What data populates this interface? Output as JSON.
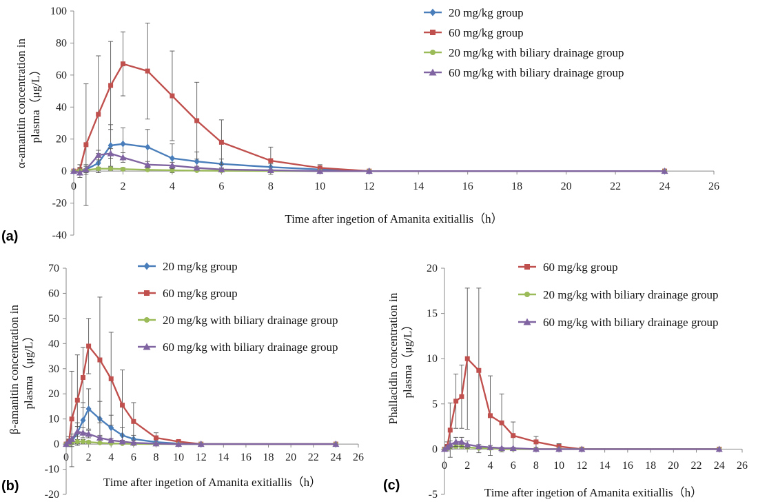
{
  "chart_data": [
    {
      "panel": "(a)",
      "type": "line",
      "xlabel": "Time after ingetion of Amanita exitiallis（h）",
      "ylabel_lines": [
        "α-amanitin concentration in",
        "plasma（μg/L）"
      ],
      "xlim": [
        0,
        26
      ],
      "ylim": [
        -40,
        100
      ],
      "x_ticks": [
        0,
        2,
        4,
        6,
        8,
        10,
        12,
        14,
        16,
        18,
        20,
        22,
        24,
        26
      ],
      "y_ticks": [
        -40,
        -20,
        0,
        20,
        40,
        60,
        80,
        100
      ],
      "legend_position": "top-center",
      "series": [
        {
          "name": "20 mg/kg group",
          "color": "#4a7ebb",
          "marker": "diamond",
          "x": [
            0,
            0.25,
            0.5,
            1,
            1.5,
            2,
            3,
            4,
            5,
            6,
            8,
            10,
            12,
            24
          ],
          "y": [
            0,
            0.5,
            1,
            5,
            16,
            17,
            15,
            8,
            6,
            4.5,
            2.5,
            1,
            0,
            0
          ],
          "err": [
            0,
            1,
            2,
            6,
            13,
            10,
            11,
            9,
            6,
            3,
            2,
            1,
            0,
            0
          ]
        },
        {
          "name": "60 mg/kg group",
          "color": "#c0504d",
          "marker": "square",
          "x": [
            0,
            0.25,
            0.5,
            1,
            1.5,
            2,
            3,
            4,
            5,
            6,
            8,
            10,
            12,
            24
          ],
          "y": [
            0,
            1,
            16.5,
            35.5,
            53.5,
            67,
            62.5,
            47,
            31.5,
            18,
            6.5,
            2,
            0,
            0
          ],
          "err": [
            0,
            3,
            38,
            36.5,
            27.5,
            20,
            30,
            28,
            24,
            14,
            8.5,
            2,
            0,
            0
          ]
        },
        {
          "name": "20 mg/kg with biliary drainage group",
          "color": "#9bbb59",
          "marker": "circle",
          "x": [
            0,
            0.25,
            0.5,
            1,
            1.5,
            2,
            3,
            4,
            5,
            6,
            8,
            10,
            12,
            24
          ],
          "y": [
            0,
            0.3,
            0.6,
            1.5,
            1.5,
            1.2,
            0.8,
            0.5,
            0.3,
            0.2,
            0.1,
            0,
            0,
            0
          ],
          "err": [
            0,
            0.5,
            1,
            1,
            1,
            1,
            0.5,
            0.5,
            0.3,
            0.2,
            0.1,
            0,
            0,
            0
          ]
        },
        {
          "name": "60 mg/kg with biliary drainage group",
          "color": "#8064a2",
          "marker": "triangle",
          "x": [
            0,
            0.25,
            0.5,
            1,
            1.5,
            2,
            3,
            4,
            5,
            6,
            8,
            10,
            12,
            24
          ],
          "y": [
            0,
            -1,
            1,
            10,
            11,
            8.5,
            4,
            3.5,
            2,
            1,
            0.5,
            0,
            0,
            0
          ],
          "err": [
            0,
            3,
            3,
            3,
            3,
            3,
            2,
            2,
            1,
            1,
            0.5,
            0,
            0,
            0
          ]
        }
      ]
    },
    {
      "panel": "(b)",
      "type": "line",
      "xlabel": "Time after ingetion of Amanita exitiallis（h）",
      "ylabel_lines": [
        "β-amanitin concentration in",
        "plasma（μg/L）"
      ],
      "xlim": [
        0,
        26
      ],
      "ylim": [
        -20,
        70
      ],
      "x_ticks": [
        0,
        2,
        4,
        6,
        8,
        10,
        12,
        14,
        16,
        18,
        20,
        22,
        24,
        26
      ],
      "y_ticks": [
        -20,
        -10,
        0,
        10,
        20,
        30,
        40,
        50,
        60,
        70
      ],
      "legend_position": "top-center",
      "series": [
        {
          "name": "20 mg/kg group",
          "color": "#4a7ebb",
          "marker": "diamond",
          "x": [
            0,
            0.25,
            0.5,
            1,
            1.5,
            2,
            3,
            4,
            5,
            6,
            8,
            10,
            12,
            24
          ],
          "y": [
            0,
            0.5,
            1,
            4.5,
            9.5,
            14,
            10,
            6.5,
            3.5,
            2,
            0.8,
            0.2,
            0,
            0
          ],
          "err": [
            0,
            1,
            2,
            4,
            7,
            8,
            7,
            5,
            3,
            1.5,
            0.8,
            0.2,
            0,
            0
          ]
        },
        {
          "name": "60 mg/kg group",
          "color": "#c0504d",
          "marker": "square",
          "x": [
            0,
            0.25,
            0.5,
            1,
            1.5,
            2,
            3,
            4,
            5,
            6,
            8,
            10,
            12,
            24
          ],
          "y": [
            0,
            1,
            10,
            17.5,
            26.5,
            39,
            33.5,
            26,
            15.5,
            9,
            2.5,
            1,
            0,
            0
          ],
          "err": [
            0,
            2,
            19,
            18,
            12,
            11,
            25,
            18.5,
            14,
            7.5,
            2,
            0.5,
            0,
            0
          ]
        },
        {
          "name": "20 mg/kg with biliary drainage group",
          "color": "#9bbb59",
          "marker": "circle",
          "x": [
            0,
            0.25,
            0.5,
            1,
            1.5,
            2,
            3,
            4,
            5,
            6,
            8,
            10,
            12,
            24
          ],
          "y": [
            0,
            0.3,
            0.5,
            1,
            1,
            0.8,
            0.5,
            0.3,
            0.2,
            0.1,
            0,
            0,
            0,
            0
          ],
          "err": [
            0,
            0.5,
            0.5,
            0.8,
            0.8,
            0.5,
            0.3,
            0.2,
            0.1,
            0.1,
            0,
            0,
            0,
            0
          ]
        },
        {
          "name": "60 mg/kg with biliary drainage group",
          "color": "#8064a2",
          "marker": "triangle",
          "x": [
            0,
            0.25,
            0.5,
            1,
            1.5,
            2,
            3,
            4,
            5,
            6,
            8,
            10,
            12,
            24
          ],
          "y": [
            0,
            1,
            2,
            5,
            4.5,
            4,
            2.5,
            1.5,
            1,
            0.5,
            0.2,
            0,
            0,
            0
          ],
          "err": [
            0,
            1,
            2,
            2,
            2,
            1.5,
            1,
            0.8,
            0.5,
            0.3,
            0.1,
            0,
            0,
            0
          ]
        }
      ]
    },
    {
      "panel": "(c)",
      "type": "line",
      "xlabel": "Time after ingetion of Amanita exitiallis（h）",
      "ylabel_lines": [
        "Phallacidin concentration in",
        "plasma（μg/L）"
      ],
      "xlim": [
        0,
        26
      ],
      "ylim": [
        -5,
        20
      ],
      "x_ticks": [
        0,
        2,
        4,
        6,
        8,
        10,
        12,
        14,
        16,
        18,
        20,
        22,
        24,
        26
      ],
      "y_ticks": [
        -5,
        0,
        5,
        10,
        15,
        20
      ],
      "legend_position": "top-center",
      "series": [
        {
          "name": "60 mg/kg group",
          "color": "#c0504d",
          "marker": "square",
          "x": [
            0,
            0.25,
            0.5,
            1,
            1.5,
            2,
            3,
            4,
            5,
            6,
            8,
            10,
            12,
            24
          ],
          "y": [
            0,
            0.3,
            2.1,
            5.3,
            5.8,
            10,
            8.7,
            3.7,
            2.9,
            1.5,
            0.8,
            0.3,
            0,
            0
          ],
          "err": [
            0,
            0.5,
            3,
            3,
            3.5,
            7.8,
            9.1,
            4.4,
            3.2,
            1.5,
            0.6,
            0.3,
            0,
            0
          ]
        },
        {
          "name": "20 mg/kg with biliary drainage group",
          "color": "#9bbb59",
          "marker": "circle",
          "x": [
            0,
            0.25,
            0.5,
            1,
            1.5,
            2,
            3,
            4,
            5,
            6,
            8,
            10,
            12,
            24
          ],
          "y": [
            0,
            0.1,
            0.2,
            0.3,
            0.3,
            0.2,
            0.1,
            0.1,
            0,
            0,
            0,
            0,
            0,
            0
          ],
          "err": [
            0,
            0.1,
            0.2,
            0.2,
            0.2,
            0.1,
            0.1,
            0.1,
            0,
            0,
            0,
            0,
            0,
            0
          ]
        },
        {
          "name": "60 mg/kg with biliary drainage group",
          "color": "#8064a2",
          "marker": "triangle",
          "x": [
            0,
            0.25,
            0.5,
            1,
            1.5,
            2,
            3,
            4,
            5,
            6,
            8,
            10,
            12,
            24
          ],
          "y": [
            0,
            0.2,
            0.5,
            0.8,
            0.8,
            0.5,
            0.3,
            0.2,
            0.1,
            0.1,
            0,
            0,
            0,
            0
          ],
          "err": [
            0,
            0.2,
            0.4,
            0.5,
            0.5,
            0.4,
            0.2,
            0.2,
            0.1,
            0.1,
            0,
            0,
            0,
            0
          ]
        }
      ]
    }
  ]
}
